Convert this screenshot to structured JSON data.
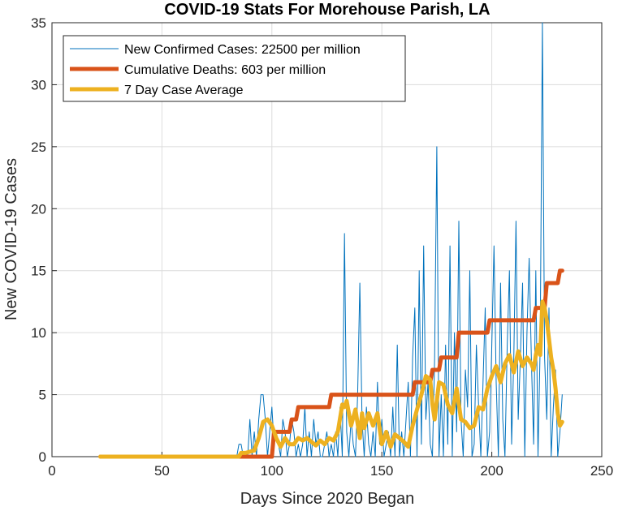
{
  "chart_data": {
    "type": "line",
    "title": "COVID-19 Stats For Morehouse Parish, LA",
    "xlabel": "Days Since 2020 Began",
    "ylabel": "New COVID-19 Cases",
    "xlim": [
      0,
      250
    ],
    "ylim": [
      0,
      35
    ],
    "xticks": [
      "0",
      "50",
      "100",
      "150",
      "200",
      "250"
    ],
    "yticks": [
      "0",
      "5",
      "10",
      "15",
      "20",
      "25",
      "30",
      "35"
    ],
    "grid": true,
    "legend_position": "top-left",
    "series": [
      {
        "name": "New Confirmed Cases: 22500 per million",
        "color": "#0072BD",
        "x": [
          22,
          84,
          85,
          86,
          87,
          88,
          89,
          90,
          91,
          92,
          93,
          94,
          95,
          96,
          97,
          98,
          99,
          100,
          101,
          102,
          103,
          104,
          105,
          106,
          107,
          108,
          109,
          110,
          111,
          112,
          113,
          114,
          115,
          116,
          117,
          118,
          119,
          120,
          121,
          122,
          123,
          124,
          125,
          126,
          127,
          128,
          129,
          130,
          131,
          132,
          133,
          134,
          135,
          136,
          137,
          138,
          139,
          140,
          141,
          142,
          143,
          144,
          145,
          146,
          147,
          148,
          149,
          150,
          151,
          152,
          153,
          154,
          155,
          156,
          157,
          158,
          159,
          160,
          161,
          162,
          163,
          164,
          165,
          166,
          167,
          168,
          169,
          170,
          171,
          172,
          173,
          174,
          175,
          176,
          177,
          178,
          179,
          180,
          181,
          182,
          183,
          184,
          185,
          186,
          187,
          188,
          189,
          190,
          191,
          192,
          193,
          194,
          195,
          196,
          197,
          198,
          199,
          200,
          201,
          202,
          203,
          204,
          205,
          206,
          207,
          208,
          209,
          210,
          211,
          212,
          213,
          214,
          215,
          216,
          217,
          218,
          219,
          220,
          221,
          222,
          223,
          224,
          225,
          226,
          227,
          228,
          229,
          230,
          231,
          232
        ],
        "values": [
          0,
          0,
          1,
          1,
          0,
          0,
          0,
          3,
          0,
          2,
          0,
          3,
          5,
          5,
          3,
          0,
          2,
          4,
          1,
          2,
          1,
          0,
          3,
          2,
          0,
          1,
          3,
          2,
          0,
          1,
          0,
          1,
          4,
          0,
          2,
          0,
          3,
          1,
          2,
          0,
          0,
          1,
          2,
          0,
          1,
          0,
          2,
          0,
          4,
          0,
          18,
          2,
          0,
          3,
          1,
          0,
          5,
          14,
          3,
          0,
          4,
          1,
          0,
          2,
          0,
          6,
          1,
          3,
          0,
          1,
          2,
          0,
          4,
          0,
          9,
          0,
          2,
          0,
          3,
          6,
          0,
          8,
          12,
          0,
          15,
          1,
          17,
          3,
          6,
          1,
          0,
          8,
          25,
          0,
          5,
          0,
          9,
          1,
          17,
          0,
          10,
          2,
          19,
          3,
          0,
          7,
          4,
          15,
          0,
          1,
          9,
          4,
          0,
          6,
          12,
          0,
          2,
          9,
          17,
          6,
          0,
          14,
          3,
          0,
          9,
          15,
          1,
          8,
          19,
          3,
          8,
          14,
          0,
          10,
          16,
          8,
          1,
          15,
          0,
          9,
          35,
          8,
          3,
          12,
          0,
          4,
          7,
          0,
          2,
          5
        ]
      },
      {
        "name": "Cumulative Deaths: 603 per million",
        "color": "#D95319",
        "x": [
          22,
          100,
          101,
          108,
          109,
          111,
          112,
          126,
          127,
          164,
          165,
          172,
          173,
          176,
          177,
          184,
          185,
          198,
          199,
          215,
          216,
          219,
          220,
          224,
          225,
          230,
          231,
          232
        ],
        "values": [
          0,
          0,
          2,
          2,
          3,
          3,
          4,
          4,
          5,
          5,
          6,
          6,
          7,
          7,
          8,
          8,
          10,
          10,
          11,
          11,
          11,
          11,
          12,
          12,
          14,
          14,
          15,
          15
        ]
      },
      {
        "name": "7 Day Case Average",
        "color": "#EDB120",
        "x": [
          22,
          85,
          86,
          88,
          90,
          92,
          94,
          96,
          98,
          100,
          102,
          104,
          106,
          108,
          110,
          112,
          114,
          116,
          118,
          120,
          122,
          124,
          126,
          128,
          130,
          132,
          133,
          134,
          136,
          138,
          140,
          141,
          142,
          144,
          146,
          148,
          150,
          152,
          154,
          156,
          158,
          160,
          162,
          164,
          166,
          168,
          170,
          172,
          173,
          174,
          176,
          178,
          180,
          182,
          184,
          186,
          188,
          190,
          192,
          194,
          196,
          198,
          200,
          202,
          204,
          206,
          208,
          210,
          212,
          214,
          216,
          218,
          219,
          220,
          221,
          222,
          223,
          224,
          225,
          226,
          227,
          228,
          229,
          230,
          231,
          232
        ],
        "values": [
          0,
          0,
          0.3,
          0.3,
          0.4,
          0.5,
          1.5,
          2.8,
          3,
          2.5,
          1.5,
          0.8,
          1.5,
          1,
          1,
          1.5,
          1.3,
          1.5,
          1.2,
          0.9,
          1.3,
          1,
          1.5,
          1.3,
          2,
          4.2,
          4,
          4.5,
          2.5,
          3.8,
          1.5,
          3.5,
          2.3,
          3.5,
          2.5,
          3.5,
          1,
          2,
          0.8,
          1.8,
          1.5,
          1.2,
          0.8,
          2.5,
          3.8,
          5,
          6.5,
          6.2,
          4.2,
          3,
          6,
          5.8,
          4.2,
          3.5,
          5.5,
          3,
          2.8,
          2.3,
          2.5,
          4,
          3.8,
          5.5,
          6.5,
          7.3,
          6,
          7.5,
          8.2,
          6.8,
          8.5,
          7.3,
          8,
          7.5,
          7,
          8.2,
          9,
          8.2,
          12.5,
          12,
          11,
          9.5,
          8,
          7,
          5.5,
          3.5,
          2.5,
          2.8
        ]
      }
    ]
  }
}
